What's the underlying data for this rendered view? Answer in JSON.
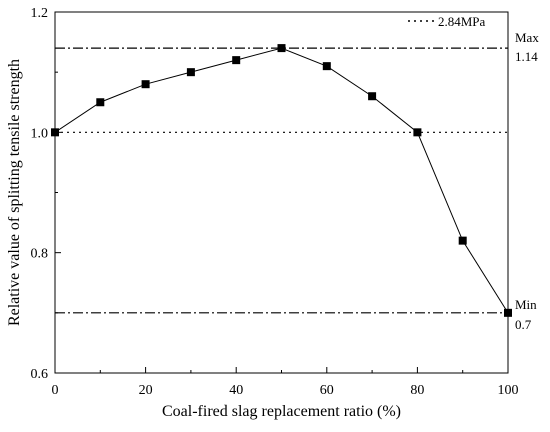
{
  "chart_data": {
    "type": "line",
    "title": "",
    "xlabel": "Coal-fired slag replacement ratio (%)",
    "ylabel": "Relative value of splitting tensile strength",
    "xlim": [
      0,
      100
    ],
    "ylim": [
      0.6,
      1.2
    ],
    "x_ticks": [
      0,
      20,
      40,
      60,
      80,
      100
    ],
    "x_tick_labels": [
      "0",
      "20",
      "40",
      "60",
      "80",
      "100"
    ],
    "y_ticks": [
      0.6,
      0.8,
      1.0,
      1.2
    ],
    "y_tick_labels": [
      "0.6",
      "0.8",
      "1.0",
      "1.2"
    ],
    "grid": false,
    "series": [
      {
        "name": "",
        "marker": "square",
        "x": [
          0,
          10,
          20,
          30,
          40,
          50,
          60,
          70,
          80,
          90,
          100
        ],
        "y": [
          1.0,
          1.05,
          1.08,
          1.1,
          1.12,
          1.14,
          1.11,
          1.06,
          1.0,
          0.82,
          0.7
        ]
      }
    ],
    "reference_lines": [
      {
        "id": "baseline",
        "value": 1.0,
        "style": "dotted"
      },
      {
        "id": "max",
        "value": 1.14,
        "style": "dash-dot"
      },
      {
        "id": "min",
        "value": 0.7,
        "style": "dash-dot"
      }
    ],
    "legend": {
      "position": "top-right",
      "entries": [
        {
          "label": "2.84MPa",
          "style": "dotted"
        }
      ]
    },
    "annotations": {
      "max_label": "Max",
      "max_value": "1.14",
      "min_label": "Min",
      "min_value": "0.7"
    },
    "colors": {
      "line": "#000000",
      "marker": "#000000",
      "background": "#ffffff"
    }
  }
}
